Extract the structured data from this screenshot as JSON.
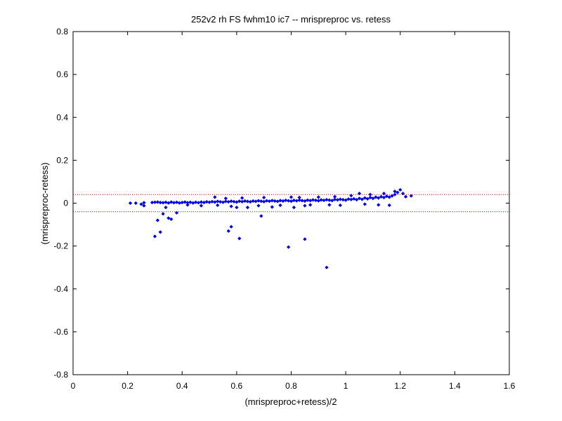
{
  "chart_data": {
    "type": "scatter",
    "title": "252v2 rh FS fwhm10 ic7 -- mrispreproc vs. retess",
    "xlabel": "(mrispreproc+retess)/2",
    "ylabel": "(mrispreproc-retess)",
    "xlim": [
      0,
      1.6
    ],
    "ylim": [
      -0.8,
      0.8
    ],
    "xticks": [
      0,
      0.2,
      0.4,
      0.6,
      0.8,
      1,
      1.2,
      1.4,
      1.6
    ],
    "yticks": [
      -0.8,
      -0.6,
      -0.4,
      -0.2,
      0,
      0.2,
      0.4,
      0.6,
      0.8
    ],
    "xtick_labels": [
      "0",
      "0.2",
      "0.4",
      "0.6",
      "0.8",
      "1",
      "1.2",
      "1.4",
      "1.6"
    ],
    "ytick_labels": [
      "-0.8",
      "-0.6",
      "-0.4",
      "-0.2",
      "0",
      "0.2",
      "0.4",
      "0.6",
      "0.8"
    ],
    "grid": false,
    "marker_color": "#0000ff",
    "reference_lines": [
      {
        "y": 0.04,
        "style": "dotted",
        "color": "#ff0000"
      },
      {
        "y": -0.04,
        "style": "dotted",
        "color": "#ff0000"
      }
    ],
    "series": [
      {
        "values_description": "",
        "points": [
          [
            0.21,
            0.0
          ],
          [
            0.23,
            0.0
          ],
          [
            0.25,
            -0.005
          ],
          [
            0.26,
            0.002
          ],
          [
            0.26,
            -0.012
          ],
          [
            0.29,
            0.003
          ],
          [
            0.3,
            0.004
          ],
          [
            0.31,
            0.005
          ],
          [
            0.32,
            0.003
          ],
          [
            0.33,
            0.002
          ],
          [
            0.34,
            0.004
          ],
          [
            0.35,
            0.001
          ],
          [
            0.36,
            0.005
          ],
          [
            0.37,
            0.002
          ],
          [
            0.38,
            0.004
          ],
          [
            0.39,
            0.001
          ],
          [
            0.4,
            0.003
          ],
          [
            0.41,
            0.005
          ],
          [
            0.42,
            0.002
          ],
          [
            0.43,
            0.004
          ],
          [
            0.44,
            0.001
          ],
          [
            0.45,
            0.004
          ],
          [
            0.46,
            0.002
          ],
          [
            0.47,
            0.005
          ],
          [
            0.48,
            0.003
          ],
          [
            0.49,
            0.006
          ],
          [
            0.5,
            0.004
          ],
          [
            0.51,
            0.007
          ],
          [
            0.52,
            0.005
          ],
          [
            0.53,
            0.008
          ],
          [
            0.54,
            0.006
          ],
          [
            0.55,
            0.004
          ],
          [
            0.56,
            0.008
          ],
          [
            0.57,
            0.006
          ],
          [
            0.58,
            0.009
          ],
          [
            0.59,
            0.007
          ],
          [
            0.6,
            0.005
          ],
          [
            0.61,
            0.009
          ],
          [
            0.62,
            0.007
          ],
          [
            0.63,
            0.01
          ],
          [
            0.64,
            0.008
          ],
          [
            0.65,
            0.006
          ],
          [
            0.66,
            0.01
          ],
          [
            0.67,
            0.008
          ],
          [
            0.68,
            0.011
          ],
          [
            0.69,
            0.009
          ],
          [
            0.7,
            0.007
          ],
          [
            0.71,
            0.011
          ],
          [
            0.72,
            0.009
          ],
          [
            0.73,
            0.012
          ],
          [
            0.74,
            0.01
          ],
          [
            0.75,
            0.008
          ],
          [
            0.76,
            0.012
          ],
          [
            0.77,
            0.01
          ],
          [
            0.78,
            0.013
          ],
          [
            0.79,
            0.011
          ],
          [
            0.8,
            0.009
          ],
          [
            0.81,
            0.013
          ],
          [
            0.82,
            0.011
          ],
          [
            0.83,
            0.014
          ],
          [
            0.84,
            0.012
          ],
          [
            0.85,
            0.01
          ],
          [
            0.86,
            0.014
          ],
          [
            0.87,
            0.012
          ],
          [
            0.88,
            0.015
          ],
          [
            0.89,
            0.013
          ],
          [
            0.9,
            0.011
          ],
          [
            0.91,
            0.015
          ],
          [
            0.92,
            0.013
          ],
          [
            0.93,
            0.016
          ],
          [
            0.94,
            0.014
          ],
          [
            0.95,
            0.012
          ],
          [
            0.96,
            0.017
          ],
          [
            0.97,
            0.015
          ],
          [
            0.98,
            0.018
          ],
          [
            0.99,
            0.016
          ],
          [
            1.0,
            0.014
          ],
          [
            1.01,
            0.019
          ],
          [
            1.02,
            0.017
          ],
          [
            1.03,
            0.02
          ],
          [
            1.04,
            0.016
          ],
          [
            1.05,
            0.022
          ],
          [
            1.06,
            0.018
          ],
          [
            1.07,
            0.024
          ],
          [
            1.08,
            0.02
          ],
          [
            1.09,
            0.026
          ],
          [
            1.1,
            0.022
          ],
          [
            1.11,
            0.028
          ],
          [
            1.12,
            0.024
          ],
          [
            1.13,
            0.03
          ],
          [
            1.14,
            0.026
          ],
          [
            1.15,
            0.032
          ],
          [
            1.16,
            0.028
          ],
          [
            1.17,
            0.034
          ],
          [
            1.18,
            0.04
          ],
          [
            1.19,
            0.05
          ],
          [
            1.2,
            0.062
          ],
          [
            1.21,
            0.045
          ],
          [
            1.22,
            0.03
          ],
          [
            1.24,
            0.034
          ],
          [
            0.34,
            -0.02
          ],
          [
            0.42,
            -0.008
          ],
          [
            0.47,
            -0.012
          ],
          [
            0.52,
            0.028
          ],
          [
            0.53,
            -0.01
          ],
          [
            0.56,
            0.022
          ],
          [
            0.58,
            -0.015
          ],
          [
            0.62,
            0.024
          ],
          [
            0.64,
            -0.02
          ],
          [
            0.68,
            -0.012
          ],
          [
            0.7,
            0.026
          ],
          [
            0.73,
            -0.018
          ],
          [
            0.76,
            -0.01
          ],
          [
            0.8,
            0.028
          ],
          [
            0.81,
            -0.02
          ],
          [
            0.83,
            0.026
          ],
          [
            0.85,
            -0.012
          ],
          [
            0.87,
            -0.008
          ],
          [
            0.9,
            0.028
          ],
          [
            0.94,
            -0.008
          ],
          [
            0.96,
            0.03
          ],
          [
            0.98,
            -0.01
          ],
          [
            1.02,
            0.035
          ],
          [
            1.05,
            0.045
          ],
          [
            1.07,
            -0.005
          ],
          [
            1.09,
            0.04
          ],
          [
            1.12,
            -0.008
          ],
          [
            1.14,
            0.045
          ],
          [
            1.16,
            -0.01
          ],
          [
            1.18,
            0.055
          ],
          [
            0.31,
            -0.08
          ],
          [
            0.33,
            -0.05
          ],
          [
            0.35,
            -0.07
          ],
          [
            0.36,
            -0.075
          ],
          [
            0.38,
            -0.045
          ],
          [
            0.32,
            -0.135
          ],
          [
            0.3,
            -0.155
          ],
          [
            0.57,
            -0.13
          ],
          [
            0.58,
            -0.11
          ],
          [
            0.61,
            -0.165
          ],
          [
            0.69,
            -0.06
          ],
          [
            0.79,
            -0.205
          ],
          [
            0.85,
            -0.168
          ],
          [
            0.93,
            -0.3
          ],
          [
            0.6,
            -0.02
          ]
        ]
      }
    ]
  }
}
